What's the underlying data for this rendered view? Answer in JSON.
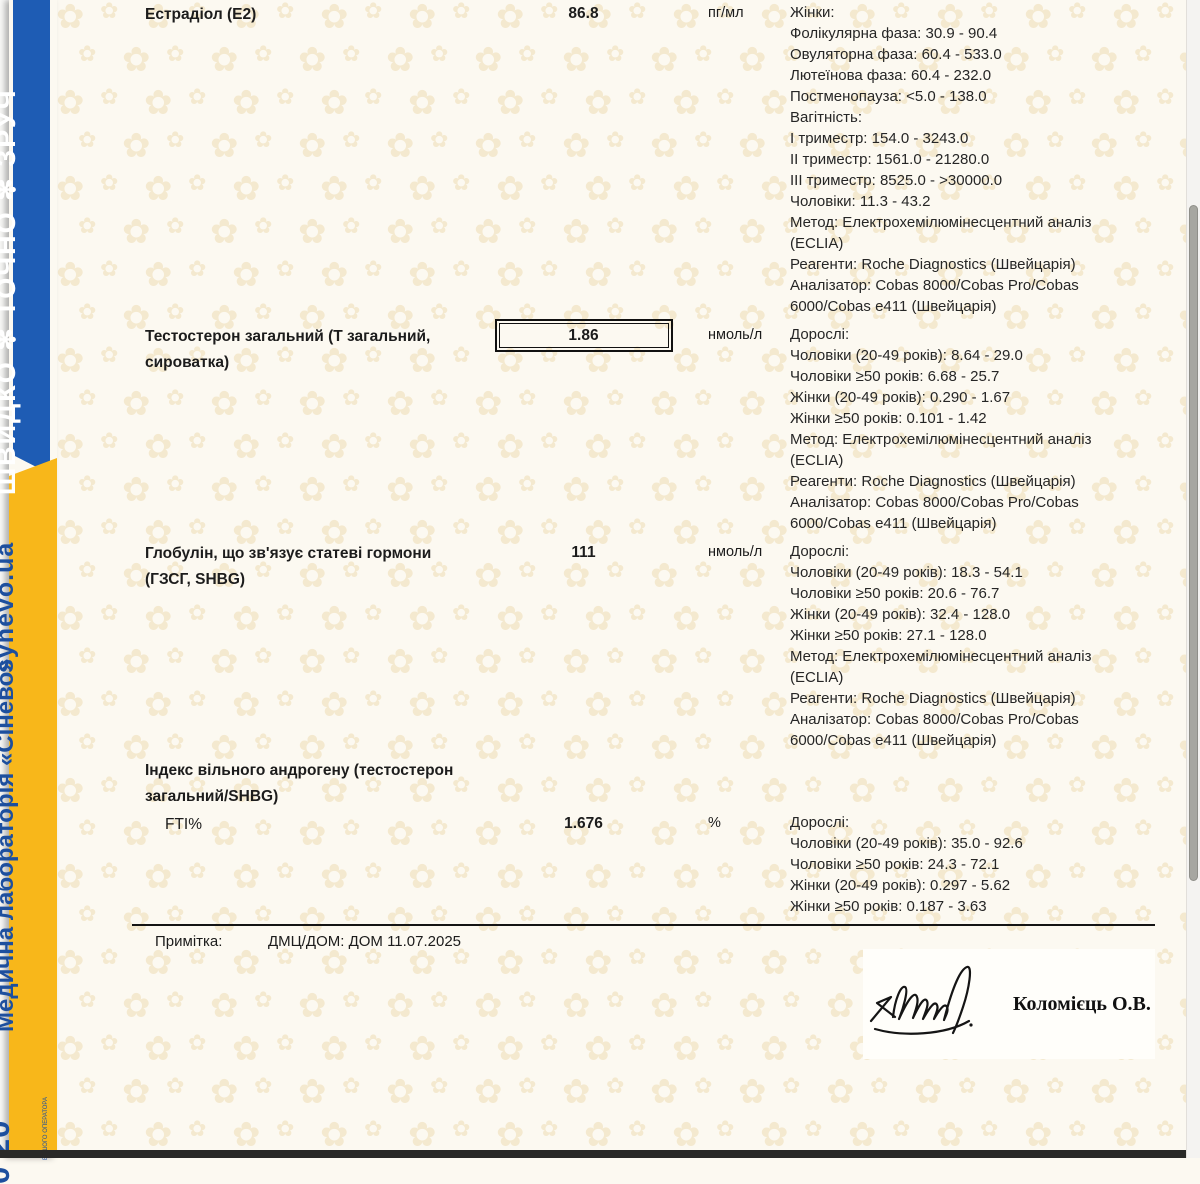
{
  "page": {
    "pattern_glyph": "✿",
    "background_pattern_color": "#eedcb4",
    "background_color": "#fcf9f1",
    "bottom_bar_color": "#292927"
  },
  "ribbon": {
    "blue_color": "#1e5cb4",
    "yellow_color": "#f8b71a",
    "yellow_text_color": "#1d4f9e",
    "slogan": "ШВИДКО ✻ ТОЧНО ✻ ЗРУЧ",
    "site": "synevo.ua",
    "lab_name": "Медична лабораторія «Сінево»",
    "phone_fragment": "0 20",
    "phone_note": "ВАШОГО ОПЕРАТОРА"
  },
  "report": {
    "rows": [
      {
        "name": "Естрадіол (E2)",
        "value": "86.8",
        "unit": "пг/мл",
        "boxed": false,
        "refs": [
          "Жінки:",
          "Фолікулярна фаза: 30.9 - 90.4",
          "Овуляторна фаза: 60.4 - 533.0",
          "Лютеїнова фаза: 60.4 - 232.0",
          "Постменопауза: <5.0 - 138.0",
          "Вагітність:",
          "I триместр: 154.0 - 3243.0",
          "II триместр: 1561.0 - 21280.0",
          "III триместр: 8525.0 - >30000.0",
          "Чоловіки: 11.3 - 43.2",
          "Метод: Електрохемілюмінесцентний аналіз (ECLIA)",
          "Реагенти: Roche Diagnostics (Швейцарія)",
          "Аналізатор: Cobas 8000/Cobas Pro/Cobas 6000/Cobas e411 (Швейцарія)"
        ]
      },
      {
        "name": "Тестостерон загальний (Т загальний, сироватка)",
        "value": "1.86",
        "unit": "нмоль/л",
        "boxed": true,
        "refs": [
          "Дорослі:",
          "Чоловіки (20-49 років): 8.64 - 29.0",
          "Чоловіки ≥50 років: 6.68 - 25.7",
          "Жінки (20-49 років): 0.290 - 1.67",
          "Жінки ≥50 років: 0.101 - 1.42",
          "Метод: Електрохемілюмінесцентний аналіз (ECLIA)",
          "Реагенти: Roche Diagnostics (Швейцарія)",
          "Аналізатор: Cobas 8000/Cobas Pro/Cobas 6000/Cobas e411 (Швейцарія)"
        ]
      },
      {
        "name": "Глобулін, що зв'язує статеві гормони (ГЗСГ, SHBG)",
        "value": "111",
        "unit": "нмоль/л",
        "boxed": false,
        "refs": [
          "Дорослі:",
          "Чоловіки (20-49 років): 18.3 - 54.1",
          "Чоловіки ≥50 років: 20.6 - 76.7",
          "Жінки (20-49 років): 32.4 - 128.0",
          "Жінки ≥50 років: 27.1 - 128.0",
          "Метод: Електрохемілюмінесцентний аналіз (ECLIA)",
          "Реагенти: Roche Diagnostics (Швейцарія)",
          "Аналізатор: Cobas 8000/Cobas Pro/Cobas 6000/Cobas e411 (Швейцарія)"
        ]
      },
      {
        "name": "Індекс вільного андрогену (тестостерон загальний/SHBG)",
        "header_only": true
      },
      {
        "name": "FTI%",
        "indent": true,
        "value": "1.676",
        "unit": "%",
        "boxed": false,
        "refs": [
          "Дорослі:",
          "Чоловіки (20-49 років): 35.0 - 92.6",
          "Чоловіки ≥50 років: 24.3 - 72.1",
          "Жінки (20-49 років): 0.297 - 5.62",
          "Жінки ≥50 років: 0.187 - 3.63"
        ]
      }
    ],
    "note_label": "Примітка:",
    "note_value": "ДМЦ/ДОМ: ДОМ 11.07.2025",
    "signature_name": "Коломієць О.В."
  }
}
